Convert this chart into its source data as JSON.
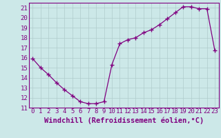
{
  "x": [
    0,
    1,
    2,
    3,
    4,
    5,
    6,
    7,
    8,
    9,
    10,
    11,
    12,
    13,
    14,
    15,
    16,
    17,
    18,
    19,
    20,
    21,
    22,
    23
  ],
  "y": [
    15.9,
    15.0,
    14.3,
    13.5,
    12.8,
    12.2,
    11.6,
    11.4,
    11.4,
    11.6,
    15.3,
    17.4,
    17.8,
    18.0,
    18.5,
    18.8,
    19.3,
    19.9,
    20.5,
    21.1,
    21.1,
    20.9,
    20.9,
    16.7
  ],
  "line_color": "#800080",
  "marker": "+",
  "marker_size": 4,
  "bg_color": "#cce8e8",
  "grid_color": "#b0cccc",
  "xlabel": "Windchill (Refroidissement éolien,°C)",
  "xlim": [
    -0.5,
    23.5
  ],
  "ylim": [
    11,
    21.5
  ],
  "yticks": [
    11,
    12,
    13,
    14,
    15,
    16,
    17,
    18,
    19,
    20,
    21
  ],
  "xticks": [
    0,
    1,
    2,
    3,
    4,
    5,
    6,
    7,
    8,
    9,
    10,
    11,
    12,
    13,
    14,
    15,
    16,
    17,
    18,
    19,
    20,
    21,
    22,
    23
  ],
  "xlabel_fontsize": 7.5,
  "tick_fontsize": 6.5
}
